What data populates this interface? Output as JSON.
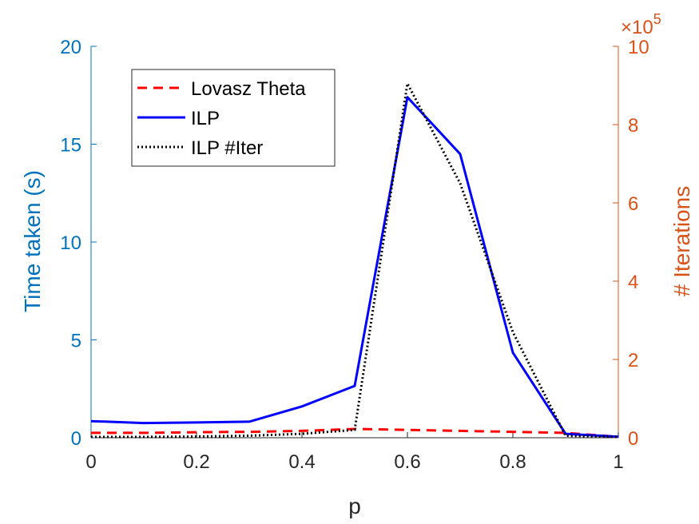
{
  "chart_data": {
    "type": "line",
    "xlabel": "p",
    "ylabel_left": "Time taken (s)",
    "ylabel_right": "# Iterations",
    "right_exponent_base": "×10",
    "right_exponent": "5",
    "xlim": [
      0,
      1
    ],
    "ylim_left": [
      0,
      20
    ],
    "ylim_right": [
      0,
      10
    ],
    "x_ticks": [
      "0",
      "0.2",
      "0.4",
      "0.6",
      "0.8",
      "1"
    ],
    "y_left_ticks": [
      "0",
      "5",
      "10",
      "15",
      "20"
    ],
    "y_right_ticks": [
      "0",
      "2",
      "4",
      "6",
      "8",
      "10"
    ],
    "x": [
      0,
      0.1,
      0.2,
      0.3,
      0.4,
      0.5,
      0.6,
      0.7,
      0.8,
      0.9,
      1.0
    ],
    "series": [
      {
        "name": "Lovasz Theta",
        "axis": "left",
        "style": "dashed",
        "color": "#FF0000",
        "values": [
          0.25,
          0.25,
          0.28,
          0.3,
          0.35,
          0.45,
          0.4,
          0.35,
          0.3,
          0.25,
          0.05
        ]
      },
      {
        "name": "ILP",
        "axis": "left",
        "style": "solid",
        "color": "#0000FF",
        "values": [
          0.85,
          0.75,
          0.78,
          0.82,
          1.6,
          2.65,
          17.4,
          14.5,
          4.35,
          0.2,
          0.05
        ]
      },
      {
        "name": "ILP #Iter",
        "axis": "right",
        "style": "dotted",
        "color": "#000000",
        "values": [
          0.02,
          0.02,
          0.03,
          0.05,
          0.1,
          0.2,
          9.05,
          6.5,
          2.7,
          0.05,
          0.02
        ]
      }
    ],
    "legend_position": "top-left",
    "grid": false,
    "colors": {
      "left_axis": "#0072BD",
      "right_axis": "#D95319",
      "x_axis": "#262626"
    }
  }
}
